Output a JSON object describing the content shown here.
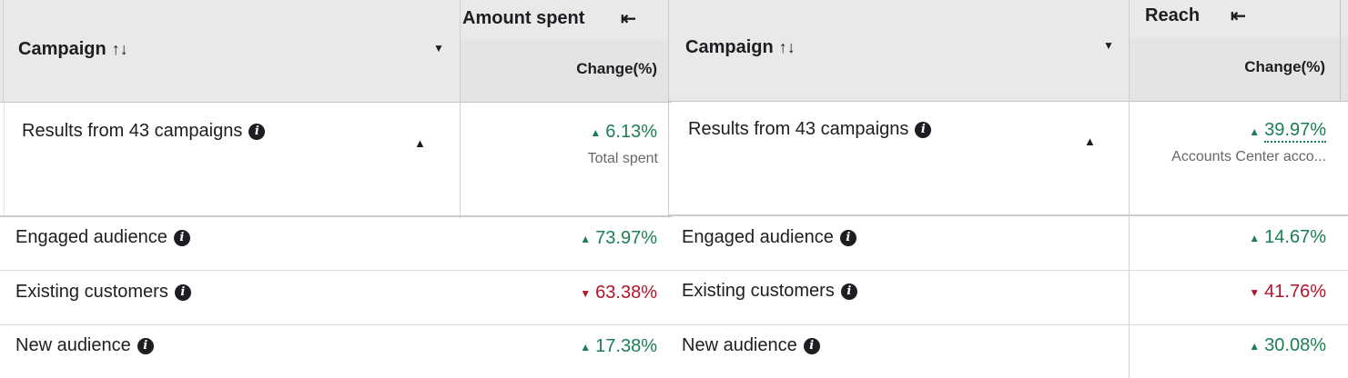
{
  "left": {
    "metric_header": "Amount spent",
    "campaign_header": "Campaign",
    "change_header": "Change(%)",
    "summary": {
      "label": "Results from 43 campaigns",
      "value": "6.13%",
      "direction": "up",
      "sub": "Total spent"
    },
    "rows": [
      {
        "label": "Engaged audience",
        "value": "73.97%",
        "direction": "up"
      },
      {
        "label": "Existing customers",
        "value": "63.38%",
        "direction": "down"
      },
      {
        "label": "New audience",
        "value": "17.38%",
        "direction": "up"
      }
    ]
  },
  "right": {
    "metric_header": "Reach",
    "campaign_header": "Campaign",
    "change_header": "Change(%)",
    "summary": {
      "label": "Results from 43 campaigns",
      "value": "39.97%",
      "direction": "up",
      "sub": "Accounts Center acco..."
    },
    "rows": [
      {
        "label": "Engaged audience",
        "value": "14.67%",
        "direction": "up"
      },
      {
        "label": "Existing customers",
        "value": "41.76%",
        "direction": "down"
      },
      {
        "label": "New audience",
        "value": "30.08%",
        "direction": "up"
      }
    ]
  },
  "icons": {
    "sort": "↑↓",
    "collapse": "⇤",
    "dropdown": "▼",
    "caret_up": "▲",
    "arrow_up": "▲",
    "arrow_down": "▼",
    "info": "i"
  },
  "colors": {
    "up": "#1a7f53",
    "down": "#b3142a",
    "header_bg": "#e9e9ea"
  }
}
